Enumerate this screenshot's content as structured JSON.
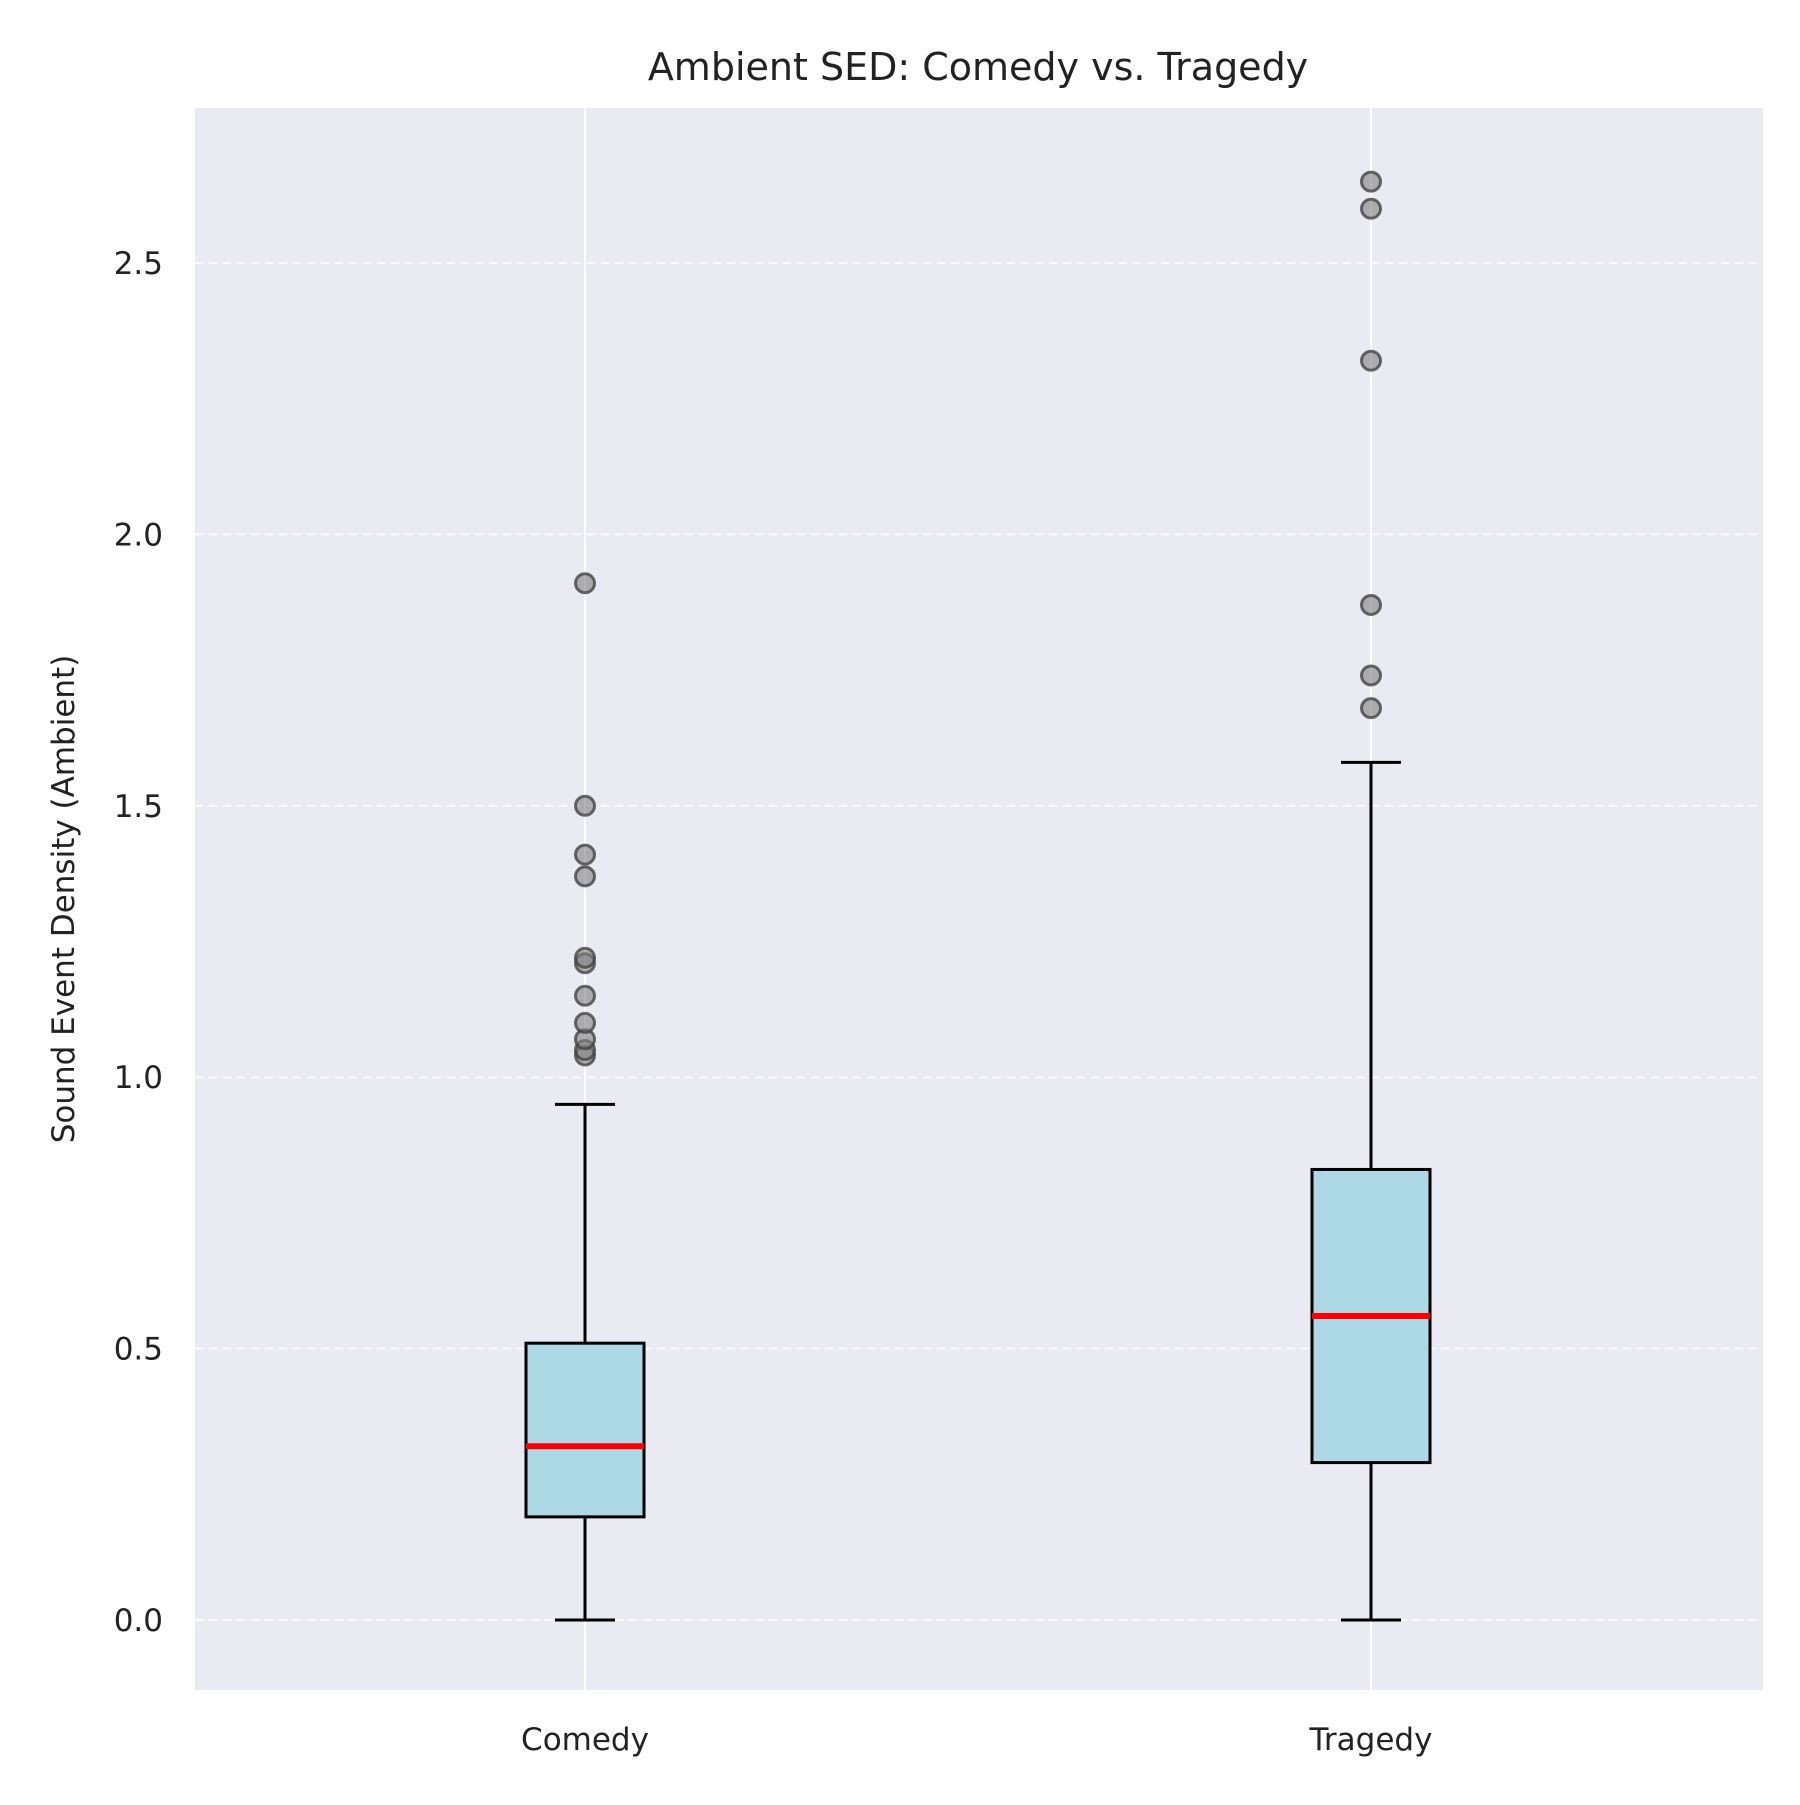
{
  "chart_data": {
    "type": "box",
    "title": "Ambient SED: Comedy vs. Tragedy",
    "xlabel": "",
    "ylabel": "Sound Event Density (Ambient)",
    "ylim": [
      -0.13,
      2.79
    ],
    "yticks": [
      0.0,
      0.5,
      1.0,
      1.5,
      2.0,
      2.5
    ],
    "ytick_labels": [
      "0.0",
      "0.5",
      "1.0",
      "1.5",
      "2.0",
      "2.5"
    ],
    "categories": [
      "Comedy",
      "Tragedy"
    ],
    "grid": "y dashed",
    "colors": {
      "plot_background": "#eaeaf2",
      "box_fill": "#add8e6",
      "box_edge": "#000000",
      "median": "#ff0000",
      "outlier": "#808080",
      "grid": "#ffffff"
    },
    "boxes": [
      {
        "category": "Comedy",
        "whisker_low": 0.0,
        "q1": 0.19,
        "median": 0.32,
        "q3": 0.51,
        "whisker_high": 0.95,
        "outliers": [
          1.04,
          1.05,
          1.07,
          1.1,
          1.15,
          1.21,
          1.22,
          1.37,
          1.41,
          1.5,
          1.91
        ]
      },
      {
        "category": "Tragedy",
        "whisker_low": 0.0,
        "q1": 0.29,
        "median": 0.56,
        "q3": 0.83,
        "whisker_high": 1.58,
        "outliers": [
          1.68,
          1.74,
          1.87,
          2.32,
          2.6,
          2.65
        ]
      }
    ]
  }
}
